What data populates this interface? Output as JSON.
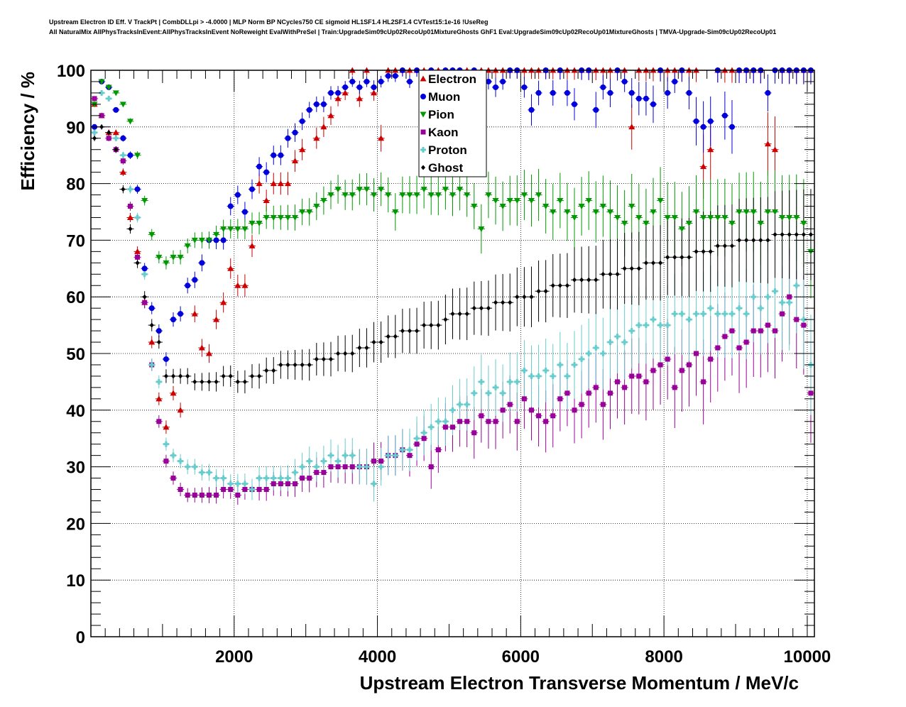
{
  "header": {
    "line1": "Upstream Electron ID Eff. V TrackPt | CombDLLpi > -4.0000 | MLP Norm BP NCycles750 CE sigmoid HL1SF1.4 HL2SF1.4 CVTest15:1e-16 !UseReg",
    "line2": "All NaturalMix AllPhysTracksInEvent:AllPhysTracksInEvent NoReweight EvalWithPreSel | Train:UpgradeSim09cUp02RecoUp01MixtureGhosts GhF1 Eval:UpgradeSim09cUp02RecoUp01MixtureGhosts | TMVA-Upgrade-Sim09cUp02RecoUp01"
  },
  "chart_data": {
    "type": "scatter",
    "xlabel": "Upstream Electron Transverse Momentum / MeV/c",
    "ylabel": "Efficiency / %",
    "xlim": [
      0,
      10100
    ],
    "ylim": [
      0,
      100
    ],
    "xticks": [
      2000,
      4000,
      6000,
      8000,
      10000
    ],
    "yticks": [
      0,
      10,
      20,
      30,
      40,
      50,
      60,
      70,
      80,
      90,
      100
    ],
    "grid": true,
    "legend_position": "top-center",
    "x": [
      50,
      150,
      250,
      350,
      450,
      550,
      650,
      750,
      850,
      950,
      1050,
      1150,
      1250,
      1350,
      1450,
      1550,
      1650,
      1750,
      1850,
      1950,
      2050,
      2150,
      2250,
      2350,
      2450,
      2550,
      2650,
      2750,
      2850,
      2950,
      3050,
      3150,
      3250,
      3350,
      3450,
      3550,
      3650,
      3750,
      3850,
      3950,
      4050,
      4150,
      4250,
      4350,
      4450,
      4550,
      4650,
      4750,
      4850,
      4950,
      5050,
      5150,
      5250,
      5350,
      5450,
      5550,
      5650,
      5750,
      5850,
      5950,
      6050,
      6150,
      6250,
      6350,
      6450,
      6550,
      6650,
      6750,
      6850,
      6950,
      7050,
      7150,
      7250,
      7350,
      7450,
      7550,
      7650,
      7750,
      7850,
      7950,
      8050,
      8150,
      8250,
      8350,
      8450,
      8550,
      8650,
      8750,
      8850,
      8950,
      9050,
      9150,
      9250,
      9350,
      9450,
      9550,
      9650,
      9750,
      9850,
      9950,
      10050
    ],
    "series": [
      {
        "name": "Electron",
        "color": "#cc0000",
        "marker": "triangle-up",
        "values": [
          94,
          92,
          89,
          89,
          82,
          74,
          68,
          59,
          52,
          42,
          37,
          43,
          40,
          null,
          57,
          51,
          50,
          56,
          59,
          65,
          62,
          62,
          69,
          80,
          77,
          80,
          80,
          80,
          84,
          86,
          null,
          88,
          90,
          92,
          95,
          96,
          100,
          95,
          100,
          96,
          88,
          100,
          100,
          100,
          100,
          100,
          100,
          100,
          100,
          100,
          100,
          100,
          100,
          100,
          100,
          100,
          100,
          100,
          100,
          100,
          100,
          100,
          100,
          100,
          100,
          100,
          100,
          100,
          100,
          100,
          100,
          100,
          100,
          100,
          100,
          90,
          100,
          100,
          100,
          100,
          100,
          100,
          100,
          100,
          100,
          83,
          86,
          100,
          100,
          100,
          100,
          100,
          100,
          100,
          87,
          86,
          100,
          100,
          100,
          100,
          100
        ]
      },
      {
        "name": "Muon",
        "color": "#0000dd",
        "marker": "circle",
        "values": [
          90,
          98,
          97,
          93,
          88,
          85,
          79,
          65,
          58,
          54,
          49,
          56,
          57,
          62,
          63,
          66,
          70,
          70,
          70,
          76,
          78,
          75,
          79,
          83,
          82,
          85,
          85,
          88,
          89,
          91,
          93,
          94,
          94,
          96,
          96,
          97,
          98,
          97,
          98,
          97,
          98,
          99,
          99,
          100,
          98,
          100,
          99,
          100,
          99,
          100,
          100,
          100,
          99,
          100,
          99,
          98,
          97,
          98,
          100,
          100,
          97,
          93,
          96,
          100,
          96,
          100,
          96,
          94,
          100,
          100,
          93,
          97,
          96,
          100,
          98,
          96,
          95,
          95,
          94,
          100,
          96,
          98,
          100,
          96,
          91,
          90,
          91,
          100,
          92,
          90,
          100,
          100,
          100,
          100,
          96,
          100,
          100,
          100,
          100,
          100,
          100
        ]
      },
      {
        "name": "Pion",
        "color": "#009900",
        "marker": "triangle-down",
        "values": [
          94,
          98,
          97,
          96,
          94,
          91,
          85,
          77,
          71,
          67,
          66,
          67,
          67,
          69,
          70,
          70,
          70,
          71,
          72,
          72,
          72,
          72,
          73,
          73,
          74,
          74,
          74,
          74,
          74,
          75,
          75,
          76,
          77,
          78,
          79,
          78,
          78,
          79,
          79,
          78,
          79,
          78,
          75,
          78,
          78,
          78,
          79,
          78,
          78,
          79,
          78,
          79,
          78,
          76,
          72,
          78,
          77,
          76,
          77,
          77,
          78,
          77,
          78,
          76,
          75,
          77,
          75,
          74,
          76,
          77,
          75,
          76,
          75,
          74,
          73,
          76,
          74,
          73,
          75,
          77,
          74,
          74,
          72,
          73,
          75,
          74,
          74,
          74,
          74,
          73,
          75,
          75,
          75,
          73,
          75,
          75,
          74,
          74,
          74,
          73,
          68
        ]
      },
      {
        "name": "Kaon",
        "color": "#990099",
        "marker": "square",
        "values": [
          95,
          92,
          88,
          86,
          84,
          76,
          67,
          59,
          48,
          38,
          31,
          28,
          26,
          25,
          25,
          25,
          25,
          25,
          26,
          26,
          25,
          26,
          26,
          26,
          26,
          27,
          27,
          27,
          27,
          28,
          28,
          29,
          29,
          30,
          30,
          30,
          30,
          30,
          30,
          31,
          31,
          32,
          32,
          33,
          32,
          34,
          35,
          30,
          33,
          37,
          37,
          38,
          38,
          36,
          39,
          38,
          38,
          40,
          41,
          38,
          42,
          40,
          39,
          38,
          39,
          42,
          43,
          40,
          41,
          43,
          44,
          41,
          43,
          45,
          44,
          46,
          46,
          45,
          47,
          48,
          49,
          44,
          47,
          48,
          50,
          45,
          49,
          51,
          53,
          54,
          51,
          52,
          54,
          54,
          55,
          54,
          57,
          60,
          56,
          55,
          43
        ]
      },
      {
        "name": "Proton",
        "color": "#66cccc",
        "marker": "cross",
        "values": [
          89,
          96,
          95,
          88,
          85,
          79,
          74,
          64,
          48,
          45,
          34,
          32,
          31,
          30,
          30,
          29,
          29,
          28,
          28,
          27,
          27,
          27,
          26,
          28,
          28,
          28,
          28,
          28,
          29,
          30,
          31,
          30,
          31,
          32,
          31,
          32,
          32,
          30,
          30,
          27,
          30,
          32,
          32,
          33,
          33,
          35,
          36,
          37,
          38,
          38,
          40,
          41,
          41,
          43,
          45,
          43,
          44,
          43,
          45,
          45,
          47,
          46,
          46,
          47,
          46,
          48,
          46,
          48,
          49,
          50,
          51,
          50,
          52,
          53,
          52,
          54,
          55,
          55,
          56,
          55,
          55,
          57,
          57,
          56,
          57,
          57,
          58,
          57,
          57,
          57,
          58,
          57,
          60,
          58,
          60,
          61,
          59,
          59,
          62,
          56,
          48
        ]
      },
      {
        "name": "Ghost",
        "color": "#000000",
        "marker": "diamond",
        "values": [
          88,
          90,
          89,
          86,
          79,
          72,
          66,
          60,
          55,
          52,
          46,
          46,
          46,
          46,
          45,
          45,
          45,
          45,
          46,
          46,
          45,
          45,
          46,
          46,
          47,
          47,
          48,
          48,
          48,
          48,
          48,
          49,
          49,
          49,
          50,
          50,
          50,
          51,
          51,
          52,
          52,
          53,
          53,
          54,
          54,
          54,
          55,
          55,
          55,
          56,
          57,
          57,
          57,
          58,
          58,
          58,
          59,
          59,
          59,
          60,
          60,
          60,
          61,
          61,
          62,
          62,
          62,
          63,
          63,
          63,
          63,
          64,
          64,
          64,
          65,
          65,
          65,
          66,
          66,
          66,
          67,
          67,
          67,
          67,
          68,
          68,
          68,
          69,
          69,
          69,
          70,
          70,
          70,
          70,
          70,
          71,
          71,
          71,
          71,
          71,
          71
        ]
      }
    ]
  }
}
